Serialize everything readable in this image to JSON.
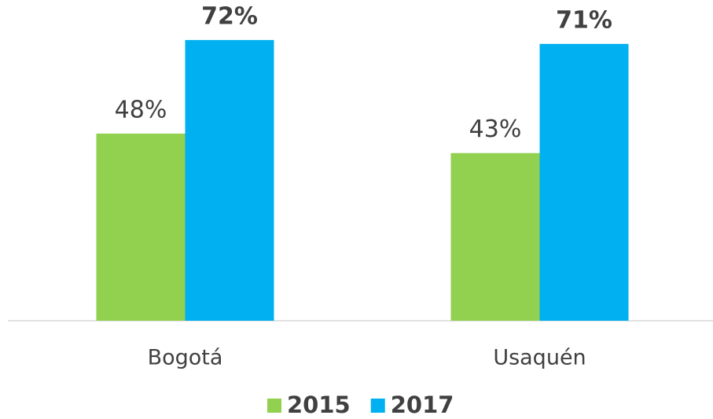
{
  "chart_data": {
    "type": "bar",
    "categories": [
      "Bogotá",
      "Usaquén"
    ],
    "series": [
      {
        "name": "2015",
        "color": "#92d050",
        "values": [
          48,
          43
        ],
        "value_labels": [
          "48%",
          "43%"
        ]
      },
      {
        "name": "2017",
        "color": "#00b0f0",
        "values": [
          72,
          71
        ],
        "value_labels": [
          "72%",
          "71%"
        ]
      }
    ],
    "legend": "bottom"
  }
}
